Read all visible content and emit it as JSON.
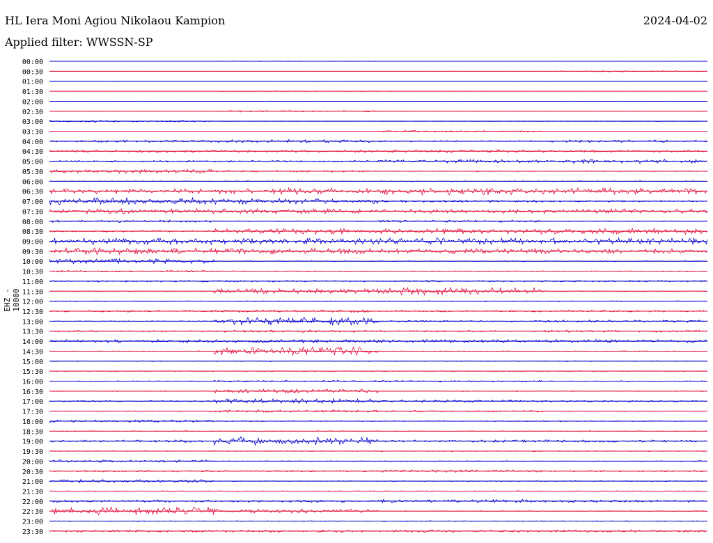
{
  "header": {
    "station": "HL Iera Moni Agiou Nikolaou Kampion",
    "date": "2024-04-02",
    "filter": "Applied filter: WWSSN-SP",
    "channel_label": "EHZ - 10000"
  },
  "colors": {
    "even": "#0000cc",
    "odd": "#e0103c"
  },
  "chart_data": {
    "type": "line",
    "title": "HL Iera Moni Agiou Nikolaou Kampion",
    "ylabel": "EHZ - 10000",
    "tick_labels": [
      "00:00",
      "00:30",
      "01:00",
      "01:30",
      "02:00",
      "02:30",
      "03:00",
      "03:30",
      "04:00",
      "04:30",
      "05:00",
      "05:30",
      "06:00",
      "06:30",
      "07:00",
      "07:30",
      "08:00",
      "08:30",
      "09:00",
      "09:30",
      "10:00",
      "10:30",
      "11:00",
      "11:30",
      "12:00",
      "12:30",
      "13:00",
      "13:30",
      "14:00",
      "14:30",
      "15:00",
      "15:30",
      "16:00",
      "16:30",
      "17:00",
      "17:30",
      "18:00",
      "18:30",
      "19:00",
      "19:30",
      "20:00",
      "20:30",
      "21:00",
      "21:30",
      "22:00",
      "22:30",
      "23:00",
      "23:30"
    ],
    "series": [
      {
        "values": [
          0.02,
          0.05,
          0.02,
          0.03
        ]
      },
      {
        "values": [
          0.02,
          0.02,
          0.02,
          0.15
        ]
      },
      {
        "values": [
          0.02,
          0.02,
          0.02,
          0.02
        ]
      },
      {
        "values": [
          0.02,
          0.08,
          0.02,
          0.02
        ]
      },
      {
        "values": [
          0.02,
          0.02,
          0.02,
          0.02
        ]
      },
      {
        "values": [
          0.02,
          0.2,
          0.02,
          0.02
        ]
      },
      {
        "values": [
          0.2,
          0.02,
          0.02,
          0.02
        ]
      },
      {
        "values": [
          0.02,
          0.02,
          0.2,
          0.02
        ]
      },
      {
        "values": [
          0.3,
          0.4,
          0.2,
          0.3
        ]
      },
      {
        "values": [
          0.3,
          0.3,
          0.4,
          0.3
        ]
      },
      {
        "values": [
          0.2,
          0.2,
          0.4,
          0.5
        ]
      },
      {
        "values": [
          0.5,
          0.2,
          0.1,
          0.1
        ]
      },
      {
        "values": [
          0.1,
          0.1,
          0.1,
          0.1
        ]
      },
      {
        "values": [
          0.6,
          0.8,
          0.9,
          0.8
        ]
      },
      {
        "values": [
          0.9,
          0.7,
          0.3,
          0.2
        ]
      },
      {
        "values": [
          0.6,
          0.6,
          0.5,
          0.6
        ]
      },
      {
        "values": [
          0.3,
          0.1,
          0.3,
          0.1
        ]
      },
      {
        "values": [
          0.2,
          0.7,
          0.7,
          0.7
        ]
      },
      {
        "values": [
          0.8,
          0.7,
          0.8,
          0.8
        ]
      },
      {
        "values": [
          0.8,
          0.7,
          0.6,
          0.6
        ]
      },
      {
        "values": [
          0.6,
          0.1,
          0.1,
          0.1
        ]
      },
      {
        "values": [
          0.2,
          0.1,
          0.1,
          0.1
        ]
      },
      {
        "values": [
          0.2,
          0.2,
          0.2,
          0.2
        ]
      },
      {
        "values": [
          0.1,
          0.6,
          0.9,
          0.1
        ]
      },
      {
        "values": [
          0.1,
          0.1,
          0.1,
          0.1
        ]
      },
      {
        "values": [
          0.2,
          0.3,
          0.2,
          0.2
        ]
      },
      {
        "values": [
          0.1,
          1.0,
          0.2,
          0.3
        ]
      },
      {
        "values": [
          0.2,
          0.3,
          0.2,
          0.3
        ]
      },
      {
        "values": [
          0.4,
          0.4,
          0.4,
          0.4
        ]
      },
      {
        "values": [
          0.1,
          1.0,
          0.1,
          0.1
        ]
      },
      {
        "values": [
          0.1,
          0.1,
          0.1,
          0.1
        ]
      },
      {
        "values": [
          0.1,
          0.1,
          0.1,
          0.1
        ]
      },
      {
        "values": [
          0.1,
          0.2,
          0.2,
          0.1
        ]
      },
      {
        "values": [
          0.1,
          0.5,
          0.1,
          0.1
        ]
      },
      {
        "values": [
          0.2,
          0.6,
          0.3,
          0.2
        ]
      },
      {
        "values": [
          0.1,
          0.3,
          0.2,
          0.1
        ]
      },
      {
        "values": [
          0.3,
          0.1,
          0.1,
          0.1
        ]
      },
      {
        "values": [
          0.1,
          0.1,
          0.1,
          0.1
        ]
      },
      {
        "values": [
          0.3,
          1.0,
          0.3,
          0.3
        ]
      },
      {
        "values": [
          0.1,
          0.1,
          0.1,
          0.1
        ]
      },
      {
        "values": [
          0.3,
          0.1,
          0.1,
          0.1
        ]
      },
      {
        "values": [
          0.2,
          0.2,
          0.3,
          0.2
        ]
      },
      {
        "values": [
          0.4,
          0.1,
          0.1,
          0.1
        ]
      },
      {
        "values": [
          0.1,
          0.1,
          0.1,
          0.1
        ]
      },
      {
        "values": [
          0.3,
          0.3,
          0.4,
          0.3
        ]
      },
      {
        "values": [
          1.0,
          0.5,
          0.1,
          0.1
        ]
      },
      {
        "values": [
          0.1,
          0.1,
          0.1,
          0.1
        ]
      },
      {
        "values": [
          0.3,
          0.3,
          0.3,
          0.3
        ]
      }
    ]
  }
}
